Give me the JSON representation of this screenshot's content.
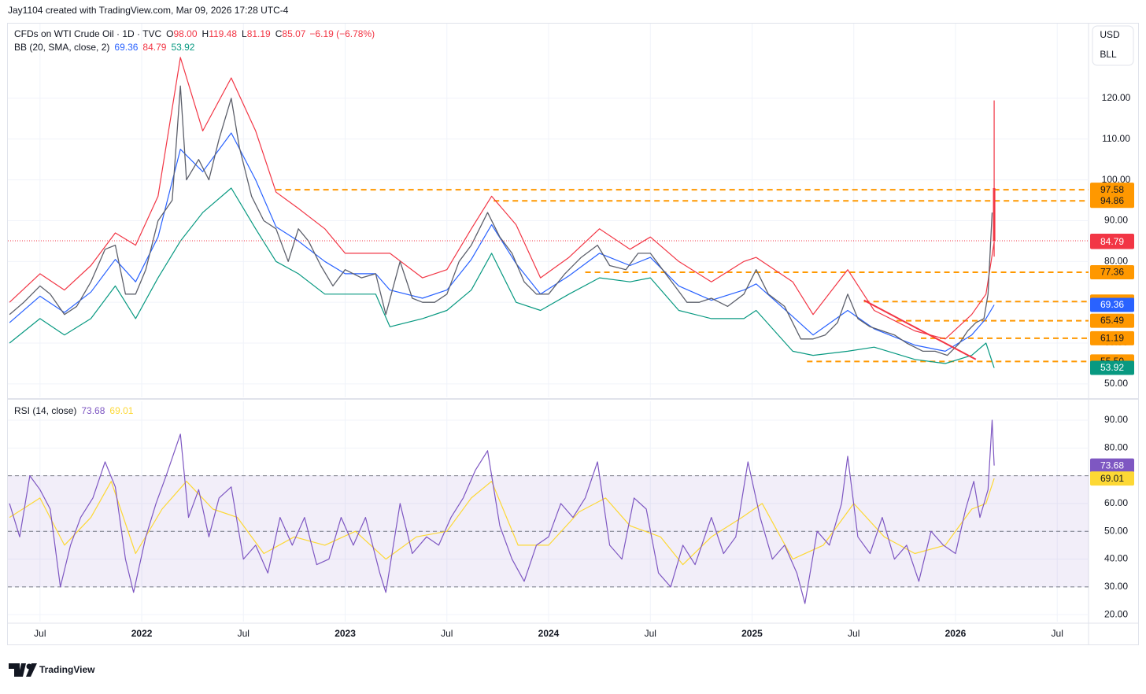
{
  "header": "Jay1104 created with TradingView.com, Mar 09, 2026 17:28 UTC-4",
  "footer": "TradingView",
  "chart_data": {
    "type": "line",
    "title": "CFDs on WTI Crude Oil · 1D · TVC",
    "currency": "USD",
    "unit": "BLL",
    "ohlc": {
      "x": 2026.19,
      "color": "#f23645",
      "fields": [
        {
          "key": "O",
          "value": {
            "value": 98,
            "label": "98.00"
          }
        },
        {
          "key": "H",
          "value": 119.48
        },
        {
          "key": "L",
          "value": 81.19
        },
        {
          "key": "C",
          "value": 85.07
        }
      ],
      "change": "−6.19 (−6.78%)"
    },
    "x": [
      2021.35,
      2021.42,
      2021.5,
      2021.55,
      2021.62,
      2021.68,
      2021.75,
      2021.82,
      2021.87,
      2021.92,
      2021.97,
      2022.02,
      2022.08,
      2022.15,
      2022.19,
      2022.22,
      2022.28,
      2022.33,
      2022.38,
      2022.44,
      2022.48,
      2022.54,
      2022.6,
      2022.66,
      2022.72,
      2022.77,
      2022.82,
      2022.88,
      2022.94,
      2023.0,
      2023.08,
      2023.15,
      2023.2,
      2023.27,
      2023.33,
      2023.38,
      2023.44,
      2023.5,
      2023.56,
      2023.62,
      2023.7,
      2023.76,
      2023.82,
      2023.88,
      2023.94,
      2024.0,
      2024.08,
      2024.16,
      2024.24,
      2024.3,
      2024.38,
      2024.44,
      2024.5,
      2024.56,
      2024.62,
      2024.68,
      2024.74,
      2024.8,
      2024.88,
      2024.96,
      2025.02,
      2025.08,
      2025.16,
      2025.24,
      2025.3,
      2025.36,
      2025.42,
      2025.47,
      2025.52,
      2025.58,
      2025.64,
      2025.7,
      2025.76,
      2025.84,
      2025.9,
      2025.96,
      2026.02,
      2026.06,
      2026.1,
      2026.14,
      2026.16,
      2026.18
    ],
    "values": [
      67,
      70,
      74,
      72,
      67,
      69,
      75,
      83,
      84,
      72,
      72,
      78,
      90,
      95,
      123,
      100,
      105,
      100,
      110,
      120,
      108,
      96,
      90,
      88,
      80,
      88,
      85,
      79,
      74,
      78,
      76,
      77,
      67,
      80,
      71,
      70,
      70,
      72,
      80,
      84,
      92,
      86,
      82,
      75,
      72,
      72,
      77,
      81,
      84,
      79,
      78,
      82,
      82,
      78,
      74,
      70,
      70,
      71,
      69,
      72,
      78,
      72,
      69,
      61,
      61,
      62,
      65,
      72,
      66,
      64,
      63,
      62,
      60,
      58,
      58,
      57,
      60,
      63,
      65,
      66,
      72,
      92
    ],
    "color": "#5d606b",
    "xlim": [
      2021.342,
      2026.654
    ],
    "xticks": [
      {
        "value": 2021.5,
        "label": "Jul"
      },
      2022,
      {
        "value": 2022.5,
        "label": "Jul"
      },
      2023,
      {
        "value": 2023.5,
        "label": "Jul"
      },
      2024,
      {
        "value": 2024.5,
        "label": "Jul"
      },
      2025,
      {
        "value": 2025.5,
        "label": "Jul"
      },
      2026,
      {
        "value": 2026.5,
        "label": "Jul"
      }
    ],
    "ylim": [
      46.7,
      138.3
    ],
    "yticks": [
      {
        "value": 50,
        "label": "50.00"
      },
      {
        "value": 60,
        "label": "60.00"
      },
      {
        "value": 70,
        "label": "70.00"
      },
      {
        "value": 80,
        "label": "80.00"
      },
      {
        "value": 90,
        "label": "90.00"
      },
      {
        "value": 100,
        "label": "100.00"
      },
      {
        "value": 110,
        "label": "110.00"
      },
      {
        "value": 120,
        "label": "120.00"
      }
    ],
    "grid": true,
    "bb": {
      "name": "BB (20, SMA, close, 2)",
      "colors": {
        "upper": "#f23645",
        "basis": "#2962ff",
        "lower": "#089981"
      },
      "x": [
        2021.35,
        2021.5,
        2021.62,
        2021.75,
        2021.87,
        2021.97,
        2022.08,
        2022.19,
        2022.3,
        2022.44,
        2022.56,
        2022.66,
        2022.77,
        2022.9,
        2023.0,
        2023.15,
        2023.22,
        2023.38,
        2023.5,
        2023.62,
        2023.72,
        2023.84,
        2023.96,
        2024.1,
        2024.25,
        2024.4,
        2024.5,
        2024.64,
        2024.8,
        2024.96,
        2025.02,
        2025.2,
        2025.3,
        2025.47,
        2025.6,
        2025.8,
        2025.95,
        2026.08,
        2026.15,
        2026.19
      ],
      "upper": [
        70,
        77,
        73,
        79,
        87,
        84,
        96,
        130,
        112,
        125,
        112,
        97,
        93,
        88,
        82,
        82,
        82,
        76,
        78,
        88,
        96,
        89,
        76,
        81,
        88,
        83,
        86,
        80,
        75,
        80,
        81,
        75,
        67,
        78,
        68,
        63,
        61,
        67,
        72,
        84.79
      ],
      "basis": [
        65,
        71.5,
        67.5,
        72.5,
        80.5,
        75,
        86,
        107.5,
        102,
        111.5,
        100,
        88.5,
        85,
        80,
        77,
        77,
        73,
        71,
        73,
        80.5,
        89,
        79.5,
        72,
        76.5,
        82,
        79,
        81,
        74,
        70.5,
        73,
        74.5,
        66.5,
        62,
        68,
        63.5,
        59.5,
        58,
        62,
        66,
        69.36
      ],
      "lower": [
        60,
        66,
        62,
        66,
        74,
        66,
        76,
        85,
        92,
        98,
        88,
        80,
        77,
        72,
        72,
        72,
        64,
        66,
        68,
        73,
        82,
        70,
        68,
        72,
        76,
        75,
        76,
        68,
        66,
        66,
        68,
        58,
        57,
        58,
        59,
        56,
        55,
        57,
        60,
        53.92
      ]
    },
    "level_color": "#ff9800",
    "levels": [
      {
        "value": 97.58,
        "start": 2022.66
      },
      {
        "value": 94.86,
        "start": 2023.73
      },
      {
        "value": 77.36,
        "start": 2024.18
      },
      {
        "value": 70.19,
        "start": 2025.55
      },
      {
        "value": 65.49,
        "start": 2025.71
      },
      {
        "value": 61.19,
        "start": 2025.83
      },
      {
        "value": 55.5,
        "label": "55.50",
        "start": 2025.27
      }
    ],
    "trendline": {
      "x": [
        2025.55,
        2026.1
      ],
      "values": [
        70.5,
        56
      ],
      "color": "#f23645"
    },
    "rsi": {
      "name": "RSI (14, close)",
      "color": "#7e57c2",
      "ma_color": "#fdd835",
      "ylim": [
        17.5,
        96.8
      ],
      "yticks": [
        {
          "value": 20,
          "label": "20.00"
        },
        {
          "value": 30,
          "label": "30.00"
        },
        {
          "value": 40,
          "label": "40.00"
        },
        {
          "value": 50,
          "label": "50.00"
        },
        {
          "value": 60,
          "label": "60.00"
        },
        {
          "value": 70,
          "label": "70.00"
        },
        {
          "value": 80,
          "label": "80.00"
        },
        {
          "value": 90,
          "label": "90.00"
        }
      ],
      "bands": [
        30,
        50,
        70
      ],
      "x": [
        2021.35,
        2021.4,
        2021.45,
        2021.5,
        2021.55,
        2021.6,
        2021.65,
        2021.7,
        2021.76,
        2021.82,
        2021.87,
        2021.92,
        2021.96,
        2022.02,
        2022.07,
        2022.12,
        2022.19,
        2022.23,
        2022.28,
        2022.33,
        2022.38,
        2022.44,
        2022.5,
        2022.56,
        2022.62,
        2022.68,
        2022.74,
        2022.8,
        2022.86,
        2022.92,
        2022.98,
        2023.04,
        2023.1,
        2023.17,
        2023.2,
        2023.27,
        2023.33,
        2023.4,
        2023.46,
        2023.52,
        2023.58,
        2023.64,
        2023.7,
        2023.76,
        2023.82,
        2023.88,
        2023.94,
        2024.0,
        2024.06,
        2024.12,
        2024.18,
        2024.24,
        2024.3,
        2024.36,
        2024.42,
        2024.48,
        2024.54,
        2024.6,
        2024.66,
        2024.72,
        2024.8,
        2024.86,
        2024.92,
        2024.98,
        2025.04,
        2025.1,
        2025.16,
        2025.22,
        2025.26,
        2025.32,
        2025.38,
        2025.44,
        2025.47,
        2025.52,
        2025.58,
        2025.64,
        2025.7,
        2025.76,
        2025.82,
        2025.88,
        2025.94,
        2026.0,
        2026.05,
        2026.09,
        2026.12,
        2026.16,
        2026.18,
        2026.19
      ],
      "values": [
        60,
        48,
        70,
        65,
        58,
        30,
        45,
        55,
        62,
        75,
        66,
        40,
        28,
        48,
        60,
        70,
        85,
        55,
        65,
        48,
        62,
        66,
        40,
        45,
        35,
        55,
        45,
        55,
        38,
        40,
        55,
        45,
        55,
        35,
        28,
        60,
        42,
        48,
        45,
        55,
        62,
        72,
        79,
        52,
        40,
        32,
        45,
        48,
        60,
        55,
        62,
        75,
        45,
        40,
        62,
        58,
        35,
        30,
        45,
        38,
        55,
        42,
        48,
        75,
        55,
        40,
        45,
        35,
        24,
        50,
        45,
        60,
        77,
        48,
        42,
        55,
        40,
        45,
        32,
        50,
        45,
        42,
        58,
        68,
        55,
        65,
        90,
        73.68
      ],
      "ma_x": [
        2021.35,
        2021.5,
        2021.62,
        2021.75,
        2021.85,
        2021.97,
        2022.1,
        2022.22,
        2022.35,
        2022.47,
        2022.6,
        2022.75,
        2022.9,
        2023.05,
        2023.2,
        2023.35,
        2023.5,
        2023.62,
        2023.72,
        2023.85,
        2024.0,
        2024.15,
        2024.28,
        2024.4,
        2024.55,
        2024.66,
        2024.8,
        2024.95,
        2025.05,
        2025.2,
        2025.35,
        2025.5,
        2025.65,
        2025.8,
        2025.95,
        2026.08,
        2026.15,
        2026.19
      ],
      "ma": [
        55,
        62,
        45,
        55,
        68,
        42,
        58,
        68,
        58,
        55,
        42,
        48,
        45,
        50,
        40,
        48,
        50,
        62,
        68,
        45,
        45,
        57,
        62,
        52,
        48,
        38,
        48,
        55,
        60,
        40,
        45,
        60,
        48,
        42,
        45,
        58,
        60,
        69.01
      ]
    }
  }
}
